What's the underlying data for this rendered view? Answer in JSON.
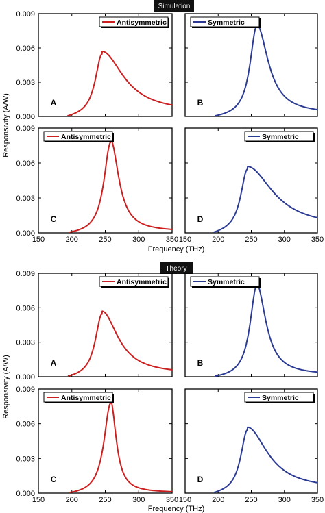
{
  "banners": {
    "top": "Simulation",
    "bottom": "Theory"
  },
  "axes": {
    "ylabel": "Responsivity (A/W)",
    "xlabel": "Frequency (THz)",
    "x_ticks": [
      "150",
      "200",
      "250",
      "300",
      "350"
    ],
    "y_ticks": [
      "0.000",
      "0.003",
      "0.006",
      "0.009"
    ]
  },
  "colors": {
    "antisymmetric": "#cc1f1f",
    "symmetric": "#2b3b94"
  },
  "chart_data": [
    {
      "type": "line",
      "group": "Simulation",
      "panel": "A",
      "series": [
        {
          "name": "Antisymmetric",
          "style": "antisymmetric",
          "peak_x": 245,
          "peak_y": 0.0057,
          "end_y": 0.001
        }
      ],
      "xlim": [
        150,
        350
      ],
      "ylim": [
        0,
        0.009
      ]
    },
    {
      "type": "line",
      "group": "Simulation",
      "panel": "B",
      "series": [
        {
          "name": "Symmetric",
          "style": "symmetric",
          "peak_x": 258,
          "peak_y": 0.0081,
          "end_y": 0.0006
        }
      ],
      "xlim": [
        150,
        350
      ],
      "ylim": [
        0,
        0.009
      ]
    },
    {
      "type": "line",
      "group": "Simulation",
      "panel": "C",
      "series": [
        {
          "name": "Antisymmetric",
          "style": "antisymmetric",
          "peak_x": 258,
          "peak_y": 0.008,
          "end_y": 0.0003
        }
      ],
      "xlim": [
        150,
        350
      ],
      "ylim": [
        0,
        0.009
      ]
    },
    {
      "type": "line",
      "group": "Simulation",
      "panel": "D",
      "series": [
        {
          "name": "Symmetric",
          "style": "symmetric",
          "peak_x": 244,
          "peak_y": 0.0057,
          "end_y": 0.0013
        }
      ],
      "xlim": [
        150,
        350
      ],
      "ylim": [
        0,
        0.009
      ]
    },
    {
      "type": "line",
      "group": "Theory",
      "panel": "A",
      "series": [
        {
          "name": "Antisymmetric",
          "style": "antisymmetric",
          "peak_x": 245,
          "peak_y": 0.0057,
          "end_y": 0.0006
        }
      ],
      "xlim": [
        150,
        350
      ],
      "ylim": [
        0,
        0.009
      ]
    },
    {
      "type": "line",
      "group": "Theory",
      "panel": "B",
      "series": [
        {
          "name": "Symmetric",
          "style": "symmetric",
          "peak_x": 258,
          "peak_y": 0.0081,
          "end_y": 0.0004
        }
      ],
      "xlim": [
        150,
        350
      ],
      "ylim": [
        0,
        0.009
      ]
    },
    {
      "type": "line",
      "group": "Theory",
      "panel": "C",
      "series": [
        {
          "name": "Antisymmetric",
          "style": "antisymmetric",
          "peak_x": 258,
          "peak_y": 0.008,
          "end_y": 0.0001
        }
      ],
      "xlim": [
        150,
        350
      ],
      "ylim": [
        0,
        0.009
      ]
    },
    {
      "type": "line",
      "group": "Theory",
      "panel": "D",
      "series": [
        {
          "name": "Symmetric",
          "style": "symmetric",
          "peak_x": 244,
          "peak_y": 0.0057,
          "end_y": 0.0009
        }
      ],
      "xlim": [
        150,
        350
      ],
      "ylim": [
        0,
        0.009
      ]
    }
  ]
}
